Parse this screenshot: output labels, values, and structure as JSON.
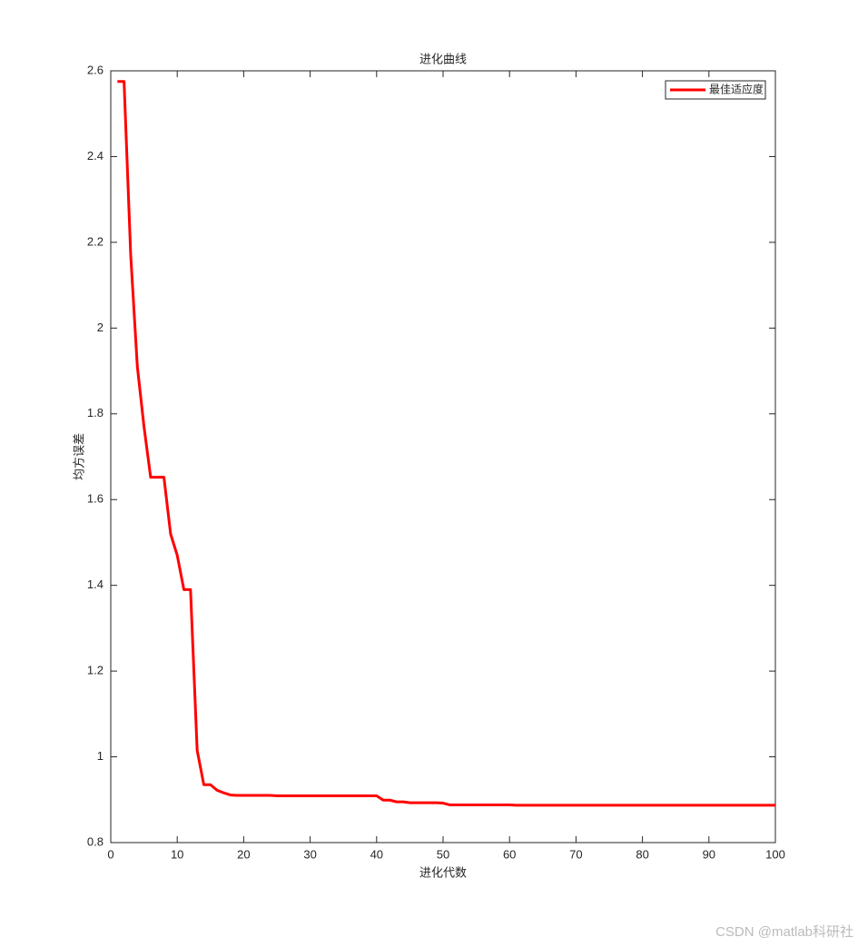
{
  "chart_data": {
    "type": "line",
    "title": "进化曲线",
    "x_label": "进化代数",
    "y_label": "均方误差",
    "x": [
      1,
      2,
      3,
      4,
      5,
      6,
      7,
      8,
      9,
      10,
      11,
      12,
      13,
      14,
      15,
      16,
      17,
      18,
      19,
      20,
      21,
      22,
      23,
      24,
      25,
      26,
      27,
      28,
      29,
      30,
      31,
      32,
      33,
      34,
      35,
      36,
      37,
      38,
      39,
      40,
      41,
      42,
      43,
      44,
      45,
      46,
      47,
      48,
      49,
      50,
      51,
      52,
      53,
      54,
      55,
      56,
      57,
      58,
      59,
      60,
      61,
      62,
      63,
      64,
      65,
      66,
      67,
      68,
      69,
      70,
      71,
      72,
      73,
      74,
      75,
      76,
      77,
      78,
      79,
      80,
      81,
      82,
      83,
      84,
      85,
      86,
      87,
      88,
      89,
      90,
      91,
      92,
      93,
      94,
      95,
      96,
      97,
      98,
      99,
      100
    ],
    "series": [
      {
        "name": "最佳适应度",
        "color": "#ff0000",
        "values": [
          2.575,
          2.575,
          2.17,
          1.91,
          1.77,
          1.652,
          1.652,
          1.652,
          1.52,
          1.47,
          1.39,
          1.39,
          1.015,
          0.935,
          0.935,
          0.922,
          0.916,
          0.911,
          0.91,
          0.91,
          0.91,
          0.91,
          0.91,
          0.91,
          0.909,
          0.909,
          0.909,
          0.909,
          0.909,
          0.909,
          0.909,
          0.909,
          0.909,
          0.909,
          0.909,
          0.909,
          0.909,
          0.909,
          0.909,
          0.909,
          0.899,
          0.899,
          0.895,
          0.895,
          0.893,
          0.893,
          0.893,
          0.893,
          0.893,
          0.892,
          0.888,
          0.888,
          0.888,
          0.888,
          0.888,
          0.888,
          0.888,
          0.888,
          0.888,
          0.888,
          0.887,
          0.887,
          0.887,
          0.887,
          0.887,
          0.887,
          0.887,
          0.887,
          0.887,
          0.887,
          0.887,
          0.887,
          0.887,
          0.887,
          0.887,
          0.887,
          0.887,
          0.887,
          0.887,
          0.887,
          0.887,
          0.887,
          0.887,
          0.887,
          0.887,
          0.887,
          0.887,
          0.887,
          0.887,
          0.887,
          0.887,
          0.887,
          0.887,
          0.887,
          0.887,
          0.887,
          0.887,
          0.887,
          0.887,
          0.887
        ]
      }
    ],
    "xlim": [
      0,
      100
    ],
    "xticks": [
      0,
      10,
      20,
      30,
      40,
      50,
      60,
      70,
      80,
      90,
      100
    ],
    "ylim": [
      0.8,
      2.6
    ],
    "yticks": [
      0.8,
      1,
      1.2,
      1.4,
      1.6,
      1.8,
      2,
      2.2,
      2.4,
      2.6
    ],
    "legend_position": "top-right",
    "grid": false
  },
  "watermark": "CSDN @matlab科研社"
}
